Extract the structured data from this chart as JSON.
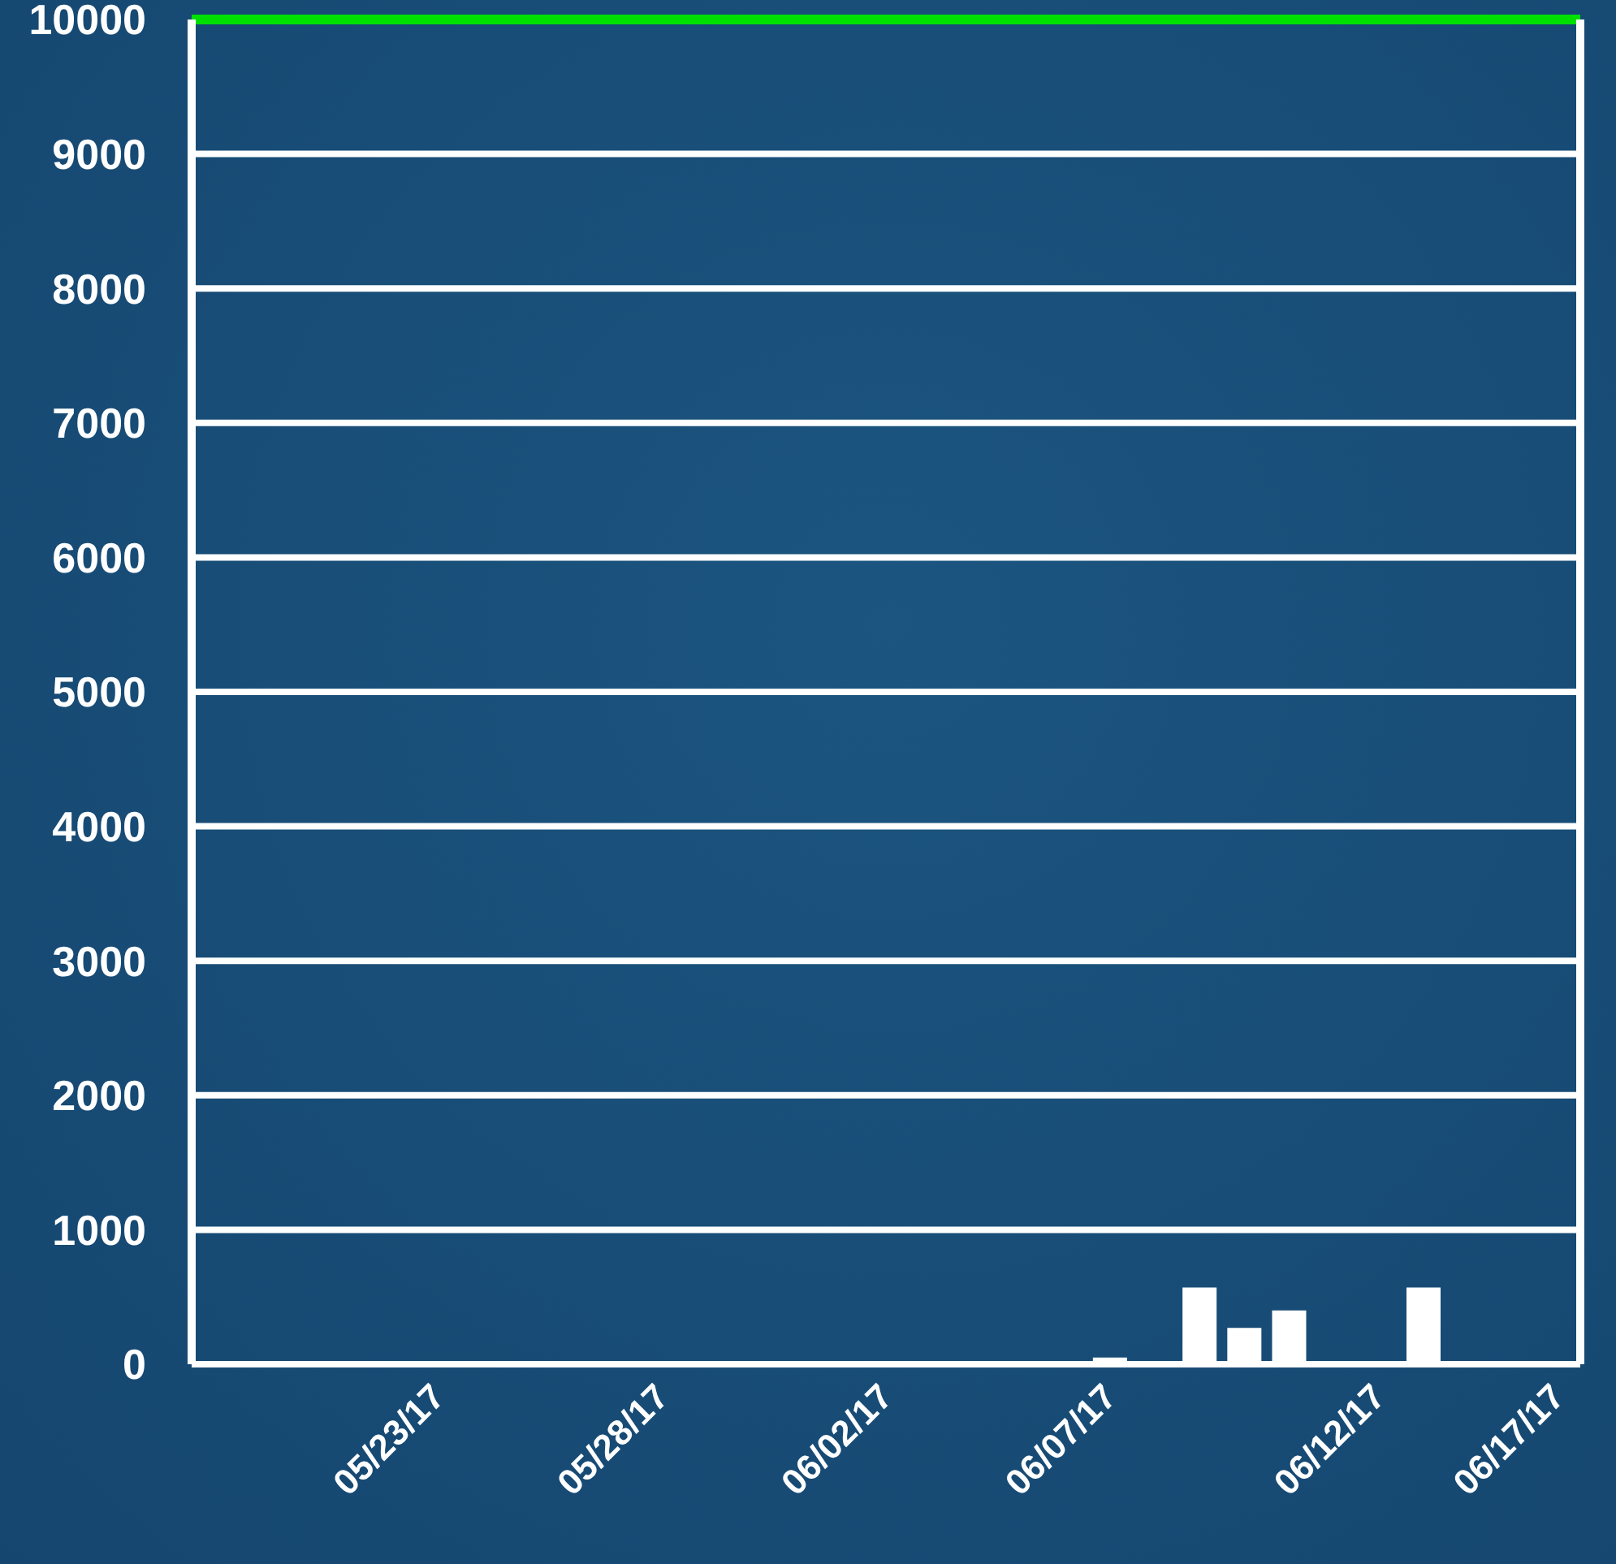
{
  "chart_data": {
    "type": "bar",
    "categories": [
      null,
      null,
      null,
      null,
      null,
      "05/23/17",
      null,
      null,
      null,
      null,
      "05/28/17",
      null,
      null,
      null,
      null,
      "06/02/17",
      null,
      null,
      null,
      null,
      "06/07/17",
      null,
      null,
      null,
      null,
      null,
      "06/12/17",
      null,
      null,
      null,
      "06/17/17"
    ],
    "values": [
      0,
      0,
      0,
      0,
      0,
      0,
      0,
      0,
      0,
      0,
      0,
      0,
      0,
      0,
      0,
      0,
      0,
      0,
      0,
      0,
      50,
      0,
      570,
      270,
      400,
      0,
      0,
      570,
      0,
      0,
      0
    ],
    "color": "#ffffff",
    "ylim": [
      0,
      10000
    ],
    "yticks": [
      0,
      1000,
      2000,
      3000,
      4000,
      5000,
      6000,
      7000,
      8000,
      9000,
      10000
    ],
    "grid": "y",
    "ref_lines": [
      {
        "axis": "y",
        "value": 10000,
        "color": "#00e000"
      }
    ]
  }
}
